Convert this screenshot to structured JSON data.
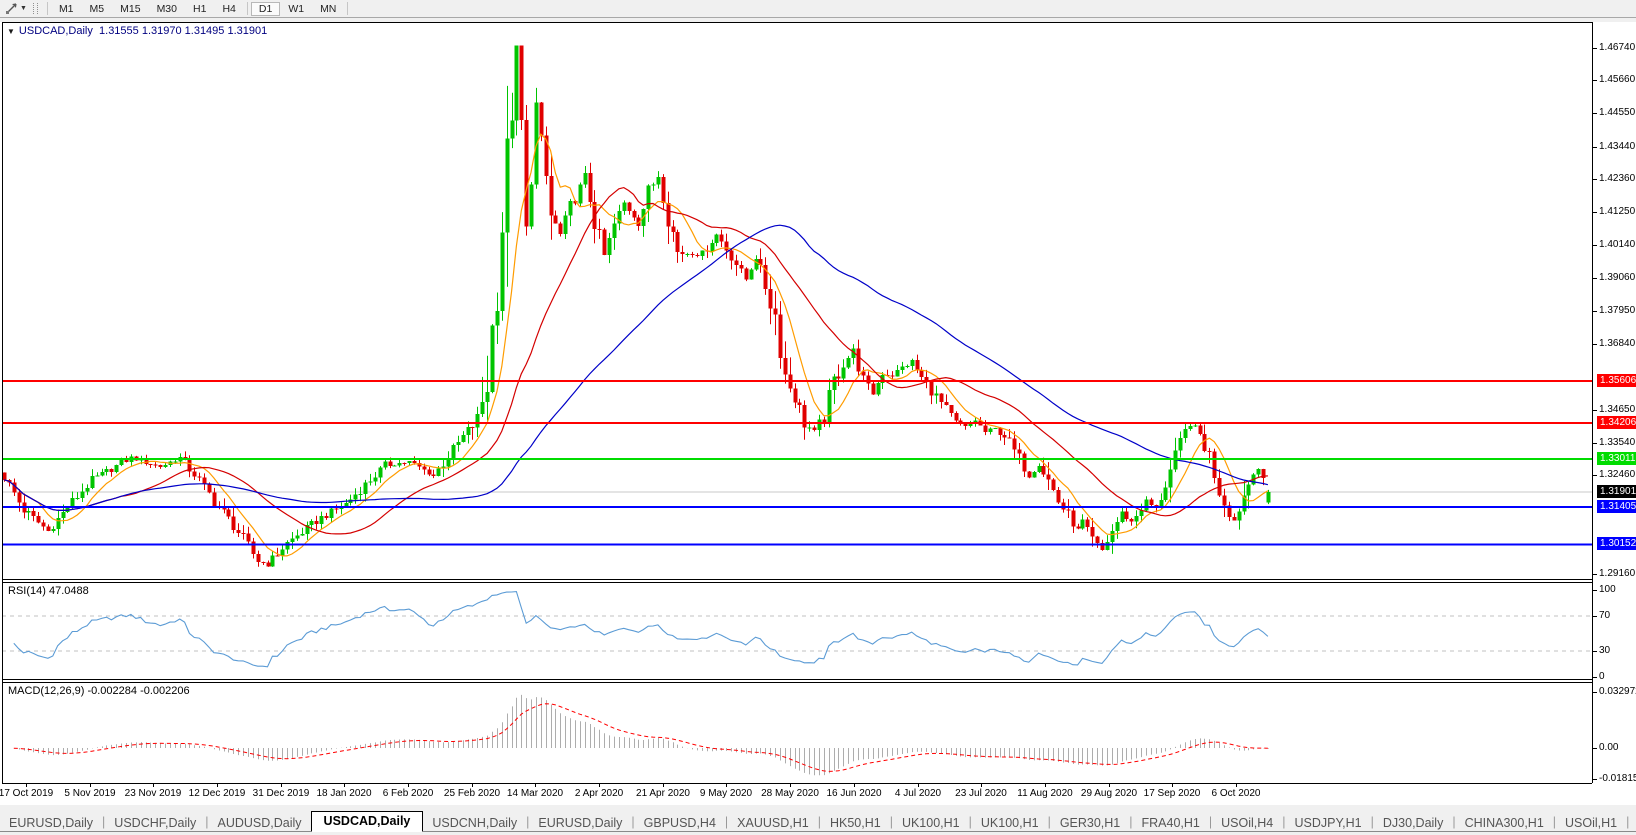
{
  "toolbar": {
    "timeframes": [
      "M1",
      "M5",
      "M15",
      "M30",
      "H1",
      "H4",
      "D1",
      "W1",
      "MN"
    ],
    "active_timeframe": "D1"
  },
  "chart": {
    "title": {
      "collapse_arrow": "▼",
      "symbol": "USDCAD,Daily",
      "ohlc": "1.31555 1.31970 1.31495 1.31901"
    },
    "price_axis_ticks": [
      "1.46740",
      "1.45660",
      "1.44550",
      "1.43440",
      "1.42360",
      "1.41250",
      "1.40140",
      "1.39060",
      "1.37950",
      "1.36840",
      "1.34650",
      "1.33540",
      "1.32460",
      "1.29160"
    ],
    "hlines": [
      {
        "price": 1.35606,
        "label": "1.35606",
        "color": "#FF0000"
      },
      {
        "price": 1.34206,
        "label": "1.34206",
        "color": "#FF0000"
      },
      {
        "price": 1.33011,
        "label": "1.33011",
        "color": "#00DC00"
      },
      {
        "price": 1.31405,
        "label": "1.31405",
        "color": "#0000FF"
      },
      {
        "price": 1.30152,
        "label": "1.30152",
        "color": "#0000FF"
      }
    ],
    "current_price": {
      "price": 1.31901,
      "label": "1.31901",
      "badge_color": "#000000",
      "line_color": "#c8c8c8"
    }
  },
  "rsi": {
    "label": "RSI(14) 47.0488",
    "period": 14,
    "value": 47.0488,
    "color": "#5B9BD5",
    "levels": [
      {
        "v": 100,
        "label": "100",
        "dashed": false
      },
      {
        "v": 70,
        "label": "70",
        "dashed": true
      },
      {
        "v": 30,
        "label": "30",
        "dashed": true
      },
      {
        "v": 0,
        "label": "0",
        "dashed": false
      }
    ]
  },
  "macd": {
    "label": "MACD(12,26,9) -0.002284 -0.002206",
    "params": [
      12,
      26,
      9
    ],
    "values": [
      -0.002284,
      -0.002206
    ],
    "hist_color": "#ADADAD",
    "signal_color": "#FF0000",
    "axis": [
      {
        "v": 0.032972,
        "label": "0.032972"
      },
      {
        "v": 0.0,
        "label": "0.00"
      },
      {
        "v": -0.01815,
        "label": "-0.01815"
      }
    ]
  },
  "date_axis": [
    "17 Oct 2019",
    "5 Nov 2019",
    "23 Nov 2019",
    "12 Dec 2019",
    "31 Dec 2019",
    "18 Jan 2020",
    "6 Feb 2020",
    "25 Feb 2020",
    "14 Mar 2020",
    "2 Apr 2020",
    "21 Apr 2020",
    "9 May 2020",
    "28 May 2020",
    "16 Jun 2020",
    "4 Jul 2020",
    "23 Jul 2020",
    "11 Aug 2020",
    "29 Aug 2020",
    "17 Sep 2020",
    "6 Oct 2020"
  ],
  "tabs": {
    "items": [
      "EURUSD,Daily",
      "USDCHF,Daily",
      "AUDUSD,Daily",
      "USDCAD,Daily",
      "USDCNH,Daily",
      "EURUSD,Daily",
      "GBPUSD,H4",
      "XAUUSD,H1",
      "HK50,H1",
      "UK100,H1",
      "UK100,H1",
      "GER30,H1",
      "FRA40,H1",
      "USOil,H4",
      "USDJPY,H1",
      "DJ30,Daily",
      "CHINA300,H1",
      "USOil,H1"
    ],
    "active_index": 3,
    "scroll_left": "◄",
    "scroll_right": "►"
  },
  "chart_data": {
    "type": "candlestick",
    "symbol": "USDCAD",
    "timeframe": "Daily",
    "bars": 260,
    "price_range": [
      1.2895,
      1.476
    ],
    "last_bar_ohlc": {
      "open": 1.31555,
      "high": 1.3197,
      "low": 1.31495,
      "close": 1.31901
    },
    "candle_colors": {
      "bull": "#00C400",
      "bear": "#E00000"
    },
    "moving_averages": [
      {
        "period": 8,
        "color": "#FF9C00"
      },
      {
        "period": 25,
        "color": "#D40000"
      },
      {
        "period": 60,
        "color": "#0000C8"
      }
    ],
    "anchors": [
      [
        0,
        1.324
      ],
      [
        4,
        1.313
      ],
      [
        9,
        1.306
      ],
      [
        13,
        1.314
      ],
      [
        18,
        1.323
      ],
      [
        26,
        1.3305
      ],
      [
        32,
        1.3275
      ],
      [
        36,
        1.3305
      ],
      [
        39,
        1.325
      ],
      [
        43,
        1.316
      ],
      [
        47,
        1.308
      ],
      [
        52,
        1.296
      ],
      [
        54,
        1.295
      ],
      [
        58,
        1.302
      ],
      [
        65,
        1.3105
      ],
      [
        70,
        1.315
      ],
      [
        78,
        1.328
      ],
      [
        83,
        1.329
      ],
      [
        88,
        1.3245
      ],
      [
        91,
        1.331
      ],
      [
        95,
        1.3395
      ],
      [
        97,
        1.343
      ],
      [
        99,
        1.356
      ],
      [
        101,
        1.39
      ],
      [
        103,
        1.428
      ],
      [
        105,
        1.465
      ],
      [
        106,
        1.442
      ],
      [
        107,
        1.406
      ],
      [
        108,
        1.423
      ],
      [
        109,
        1.448
      ],
      [
        110,
        1.436
      ],
      [
        112,
        1.411
      ],
      [
        114,
        1.405
      ],
      [
        117,
        1.418
      ],
      [
        119,
        1.424
      ],
      [
        121,
        1.41
      ],
      [
        123,
        1.398
      ],
      [
        125,
        1.408
      ],
      [
        127,
        1.4155
      ],
      [
        130,
        1.409
      ],
      [
        132,
        1.419
      ],
      [
        134,
        1.425
      ],
      [
        136,
        1.412
      ],
      [
        138,
        1.399
      ],
      [
        143,
        1.3985
      ],
      [
        146,
        1.405
      ],
      [
        149,
        1.398
      ],
      [
        152,
        1.39
      ],
      [
        154,
        1.3975
      ],
      [
        156,
        1.388
      ],
      [
        158,
        1.378
      ],
      [
        160,
        1.358
      ],
      [
        162,
        1.351
      ],
      [
        164,
        1.342
      ],
      [
        166,
        1.339
      ],
      [
        168,
        1.344
      ],
      [
        170,
        1.356
      ],
      [
        172,
        1.362
      ],
      [
        174,
        1.366
      ],
      [
        176,
        1.356
      ],
      [
        178,
        1.352
      ],
      [
        180,
        1.359
      ],
      [
        182,
        1.358
      ],
      [
        184,
        1.3605
      ],
      [
        186,
        1.3625
      ],
      [
        188,
        1.357
      ],
      [
        190,
        1.353
      ],
      [
        192,
        1.3485
      ],
      [
        195,
        1.342
      ],
      [
        197,
        1.3405
      ],
      [
        199,
        1.343
      ],
      [
        201,
        1.339
      ],
      [
        203,
        1.34
      ],
      [
        205,
        1.338
      ],
      [
        208,
        1.33
      ],
      [
        210,
        1.3245
      ],
      [
        212,
        1.3285
      ],
      [
        214,
        1.323
      ],
      [
        216,
        1.316
      ],
      [
        218,
        1.311
      ],
      [
        220,
        1.306
      ],
      [
        221,
        1.309
      ],
      [
        223,
        1.303
      ],
      [
        225,
        1.2995
      ],
      [
        227,
        1.306
      ],
      [
        229,
        1.312
      ],
      [
        231,
        1.309
      ],
      [
        234,
        1.316
      ],
      [
        236,
        1.313
      ],
      [
        238,
        1.322
      ],
      [
        240,
        1.33
      ],
      [
        242,
        1.339
      ],
      [
        243,
        1.342
      ],
      [
        245,
        1.338
      ],
      [
        247,
        1.331
      ],
      [
        249,
        1.32
      ],
      [
        251,
        1.312
      ],
      [
        252,
        1.3095
      ],
      [
        254,
        1.318
      ],
      [
        256,
        1.326
      ],
      [
        257,
        1.327
      ],
      [
        258,
        1.322
      ],
      [
        259,
        1.31901
      ]
    ]
  }
}
